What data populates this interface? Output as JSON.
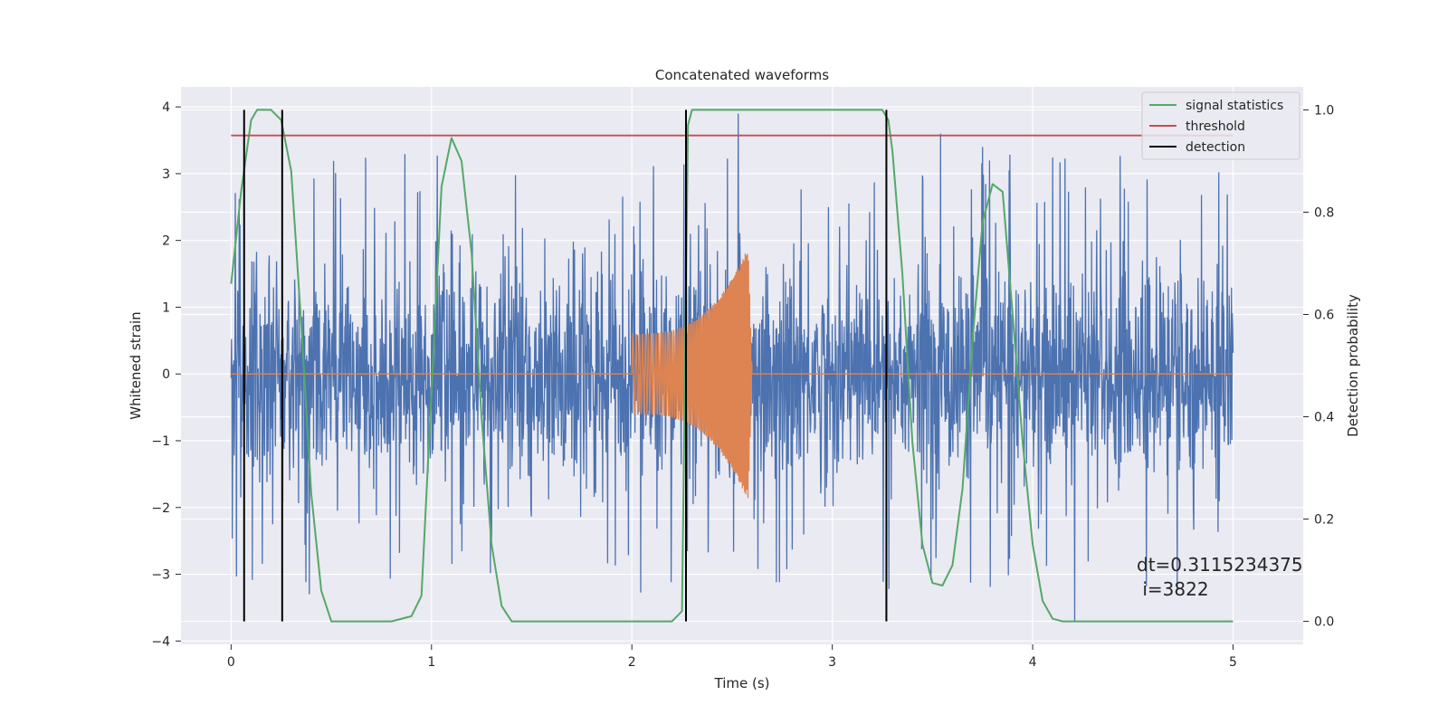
{
  "chart_data": {
    "type": "line",
    "title": "Concatenated waveforms",
    "xlabel": "Time (s)",
    "ylabel_left": "Whitened strain",
    "ylabel_right": "Detection probability",
    "xlim": [
      -0.25,
      5.35
    ],
    "ylim_left": [
      -4.05,
      4.3
    ],
    "ylim_right": [
      -0.045,
      1.045
    ],
    "x_ticks": [
      0,
      1,
      2,
      3,
      4,
      5
    ],
    "y_left_ticks": [
      -4,
      -3,
      -2,
      -1,
      0,
      1,
      2,
      3,
      4
    ],
    "y_right_ticks": [
      0.0,
      0.2,
      0.4,
      0.6,
      0.8,
      1.0
    ],
    "y_left_tick_labels": [
      "−4",
      "−3",
      "−2",
      "−1",
      "0",
      "1",
      "2",
      "3",
      "4"
    ],
    "y_right_tick_labels": [
      "0.0",
      "0.2",
      "0.4",
      "0.6",
      "0.8",
      "1.0"
    ],
    "grid": true,
    "legend_position": "top-right",
    "colors": {
      "background": "#eaeaf2",
      "grid": "#ffffff",
      "strain": "#4c72b0",
      "template": "#dd8452",
      "signal": "#55a868",
      "threshold": "#c44e52",
      "detection": "#000000"
    },
    "series": [
      {
        "name": "",
        "axis": "left",
        "color": "strain",
        "description_points": "whitened strain noise time series",
        "x_range": [
          0,
          5
        ],
        "approx_envelope": [
          -2.5,
          3.5
        ],
        "notable_peaks": [
          {
            "x": 2.53,
            "y": 3.9
          },
          {
            "x": 3.54,
            "y": 3.6
          },
          {
            "x": 4.21,
            "y": -3.7
          },
          {
            "x": 3.75,
            "y": 3.4
          }
        ]
      },
      {
        "name": "",
        "axis": "left",
        "color": "template",
        "x_range": [
          0,
          5
        ],
        "chirp": {
          "start": 2.0,
          "peak": 2.58,
          "end": 2.6,
          "start_amp": 0.6,
          "peak_amp": 1.9
        }
      },
      {
        "name": "signal statistics",
        "axis": "right",
        "color": "signal",
        "x": [
          0.0,
          0.05,
          0.1,
          0.13,
          0.2,
          0.25,
          0.3,
          0.35,
          0.4,
          0.45,
          0.5,
          0.55,
          0.8,
          0.9,
          0.95,
          1.0,
          1.05,
          1.1,
          1.15,
          1.2,
          1.25,
          1.3,
          1.35,
          1.4,
          1.45,
          2.2,
          2.25,
          2.28,
          2.3,
          3.25,
          3.28,
          3.3,
          3.35,
          3.4,
          3.45,
          3.5,
          3.55,
          3.6,
          3.65,
          3.7,
          3.75,
          3.8,
          3.85,
          3.9,
          3.95,
          4.0,
          4.05,
          4.1,
          4.15,
          4.2,
          5.0
        ],
        "y": [
          0.66,
          0.84,
          0.98,
          1.0,
          1.0,
          0.98,
          0.88,
          0.58,
          0.25,
          0.06,
          0.0,
          0.0,
          0.0,
          0.01,
          0.05,
          0.45,
          0.85,
          0.945,
          0.9,
          0.72,
          0.4,
          0.15,
          0.03,
          0.0,
          0.0,
          0.0,
          0.02,
          0.97,
          1.0,
          1.0,
          0.98,
          0.92,
          0.68,
          0.35,
          0.15,
          0.075,
          0.07,
          0.11,
          0.26,
          0.55,
          0.78,
          0.855,
          0.84,
          0.6,
          0.35,
          0.15,
          0.04,
          0.005,
          0.0,
          0.0,
          0.0
        ]
      },
      {
        "name": "threshold",
        "axis": "right",
        "color": "threshold",
        "x": [
          0,
          5
        ],
        "y": [
          0.95,
          0.95
        ]
      },
      {
        "name": "detection",
        "axis": "right",
        "color": "detection",
        "vlines": [
          0.065,
          0.255,
          2.27,
          3.27
        ],
        "ymin": 0.0,
        "ymax": 1.0
      }
    ],
    "annotation": {
      "text_line1": "dt=0.3115234375",
      "text_line2": " i=3822"
    }
  }
}
